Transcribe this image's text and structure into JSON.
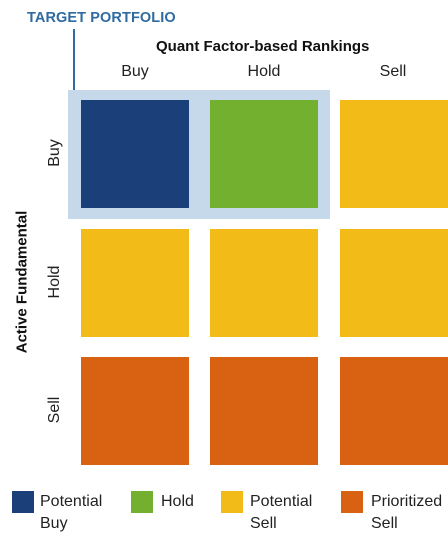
{
  "target_label": "TARGET PORTFOLIO",
  "column_axis_title": "Quant Factor-based Rankings",
  "row_axis_title": "Active Fundamental",
  "columns": [
    "Buy",
    "Hold",
    "Sell"
  ],
  "rows": [
    "Buy",
    "Hold",
    "Sell"
  ],
  "colors": {
    "potential_buy": "#1b3f78",
    "hold": "#74b02f",
    "potential_sell": "#f2bb17",
    "prioritized_sell": "#d96212",
    "highlight": "#c5d9eb",
    "accent": "#2f6aa0"
  },
  "matrix": [
    [
      "Potential Buy",
      "Hold",
      "Potential Sell"
    ],
    [
      "Potential Sell",
      "Potential Sell",
      "Potential Sell"
    ],
    [
      "Prioritized Sell",
      "Prioritized Sell",
      "Prioritized Sell"
    ]
  ],
  "legend": [
    {
      "key": "potential_buy",
      "label": "Potential Buy"
    },
    {
      "key": "hold",
      "label": "Hold"
    },
    {
      "key": "potential_sell",
      "label": "Potential Sell"
    },
    {
      "key": "prioritized_sell",
      "label": "Prioritized Sell"
    }
  ]
}
